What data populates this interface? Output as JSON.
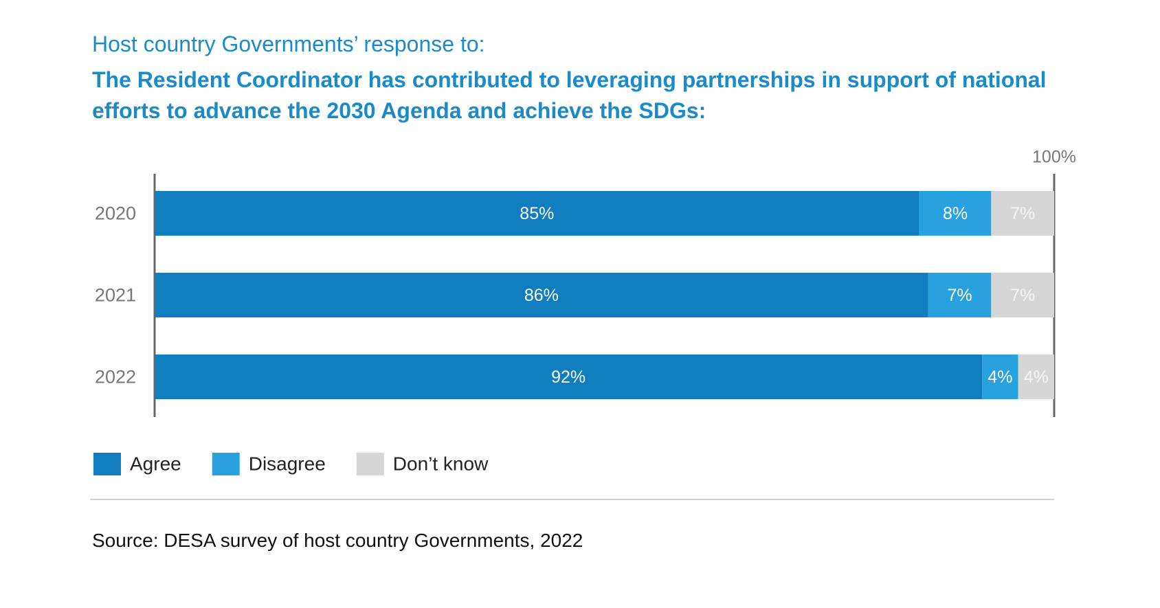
{
  "chart_data": {
    "type": "bar",
    "orientation": "horizontal",
    "stacked": true,
    "title": "Host country Governments’ response to:",
    "subtitle": "The Resident Coordinator has contributed to leveraging partnerships in support of national efforts to advance the 2030 Agenda and achieve the SDGs:",
    "categories": [
      "2020",
      "2021",
      "2022"
    ],
    "series": [
      {
        "name": "Agree",
        "color": "#0f7dbe",
        "values": [
          85,
          86,
          92
        ],
        "value_labels": [
          "85%",
          "86%",
          "92%"
        ],
        "label_color": "#ffffff"
      },
      {
        "name": "Disagree",
        "color": "#28a1de",
        "values": [
          8,
          7,
          4
        ],
        "value_labels": [
          "8%",
          "7%",
          "4%"
        ],
        "label_color": "#ffffff"
      },
      {
        "name": "Don’t know",
        "color": "#d6d6d6",
        "values": [
          7,
          7,
          4
        ],
        "value_labels": [
          "7%",
          "7%",
          "4%"
        ],
        "label_color": "#f4f4f4"
      }
    ],
    "xlim": [
      0,
      100
    ],
    "xticks": [
      {
        "value": 100,
        "label": "100%"
      }
    ],
    "source": "Source: DESA survey of host country Governments, 2022"
  }
}
